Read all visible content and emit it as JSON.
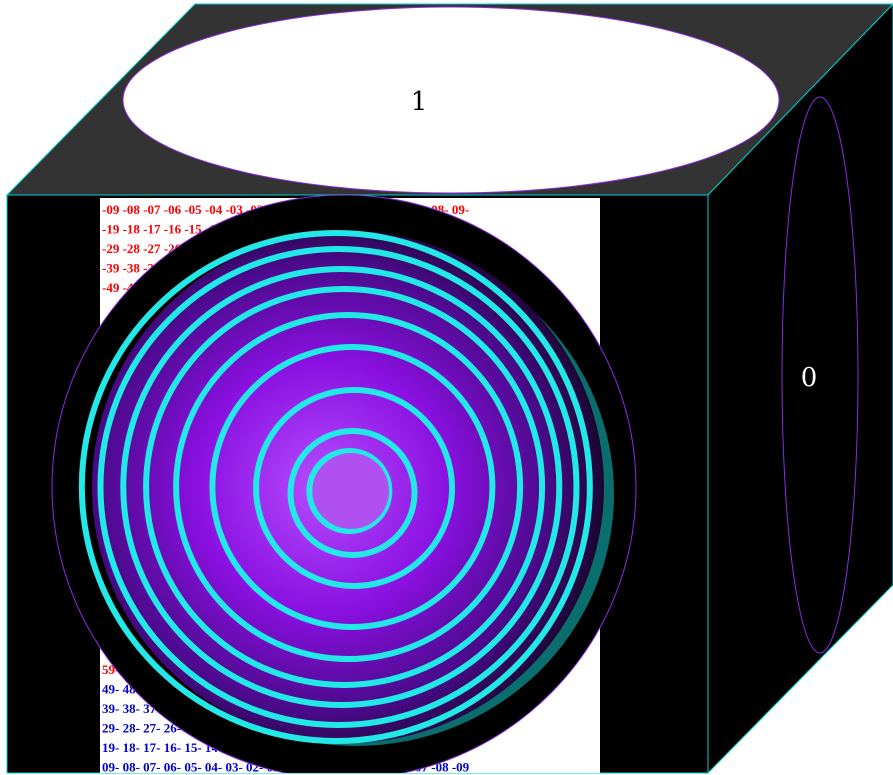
{
  "top_face": {
    "label": "1",
    "fill": "#333333",
    "ellipse_fill": "#ffffff"
  },
  "side_face": {
    "label": "0",
    "fill": "#000000"
  },
  "front_face": {
    "fill": "#000000",
    "grid_rows_top": [
      {
        "text": "-09 -08 -07 -06 -05 -04 -03 -02 -01 01- 02- 03- 04- 05- 06- 07- 08- 09-",
        "color": "#ff0000"
      },
      {
        "text": "-19 -18 -17 -16 -15 -14 -13 -12 -11 11- 12- 13- 14- 15- 16- 17- 18- 19-",
        "color": "#ff0000"
      },
      {
        "text": "-29 -28 -27 -26 -25 -24 -23 -22 -21 21- 22- 23- 24- 25- 26- 27- 28- 29-",
        "color": "#ff0000"
      },
      {
        "text": "-39 -38 -37 -36 -35 -34 -33 -32 -31 31- 32- 33- 34- 35- 36- 37- 38- 39-",
        "color": "#ff0000"
      },
      {
        "text": "-49 -48 -47 -46 -45 -44 -43 -42 -41 41- 42- 43- 44- 45- 46- 47- 48- 49-",
        "color": "#ff0000"
      }
    ],
    "grid_rows_bottom": [
      {
        "text": "59- 58- 57- 56- 55- 54- 53- 52- 51- -51 -52 -53 -54 -55 -56 -57 -58 -59",
        "color": "#ff0000"
      },
      {
        "text": "49- 48- 47- 46- 45- 44- 43- 42- 41- -41 -42 -43 -44 -45 -46 -47 -48 -49",
        "color": "#0000cc"
      },
      {
        "text": "39- 38- 37- 36- 35- 34- 33- 32- 31- -31 -32 -33 -34 -35 -36 -37 -38 -39",
        "color": "#0000cc"
      },
      {
        "text": "29- 28- 27- 26- 25- 24- 23- 22- 21- -21 -22 -23 -24 -25 -26 -27 -28 -29",
        "color": "#0000cc"
      },
      {
        "text": "19- 18- 17- 16- 15- 14- 13- 12- 11- -11 -12 -13 -14 -15 -16 -17 -18 -19",
        "color": "#0000cc"
      },
      {
        "text": "09- 08- 07- 06- 05- 04- 03- 02- 01- -01 -02 -03 -04 -05 -06 -07 -08 -09",
        "color": "#0000cc"
      }
    ]
  },
  "colors": {
    "edge": "#00ffff",
    "ring": "#22e8e8",
    "purple_outline": "#8a2be2",
    "core": "#b050f0"
  }
}
